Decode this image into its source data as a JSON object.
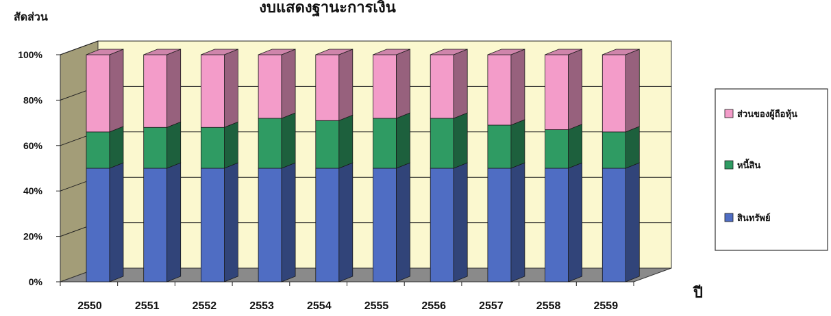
{
  "chart_data": {
    "type": "bar",
    "stacked": true,
    "normalized_percent": true,
    "title": "งบแสดงฐานะการเงิน",
    "ylabel": "สัดส่วน",
    "xlabel": "ปี",
    "ylim": [
      0,
      100
    ],
    "yticks": [
      "0%",
      "20%",
      "40%",
      "60%",
      "80%",
      "100%"
    ],
    "categories": [
      "2550",
      "2551",
      "2552",
      "2553",
      "2554",
      "2555",
      "2556",
      "2557",
      "2558",
      "2559"
    ],
    "series": [
      {
        "name": "สินทรัพย์",
        "color": "#4f6dc3",
        "values": [
          50,
          50,
          50,
          50,
          50,
          50,
          50,
          50,
          50,
          50
        ]
      },
      {
        "name": "หนี้สิน",
        "color": "#2f9b63",
        "values": [
          16,
          18,
          18,
          22,
          21,
          22,
          22,
          19,
          17,
          16
        ]
      },
      {
        "name": "ส่วนของผู้ถือหุ้น",
        "color": "#f39cc9",
        "values": [
          34,
          32,
          32,
          28,
          29,
          28,
          28,
          31,
          33,
          34
        ]
      }
    ],
    "grid": true,
    "legend_position": "right",
    "wall_color": "#fbf8cf",
    "floor_color": "#8a8a8a"
  }
}
